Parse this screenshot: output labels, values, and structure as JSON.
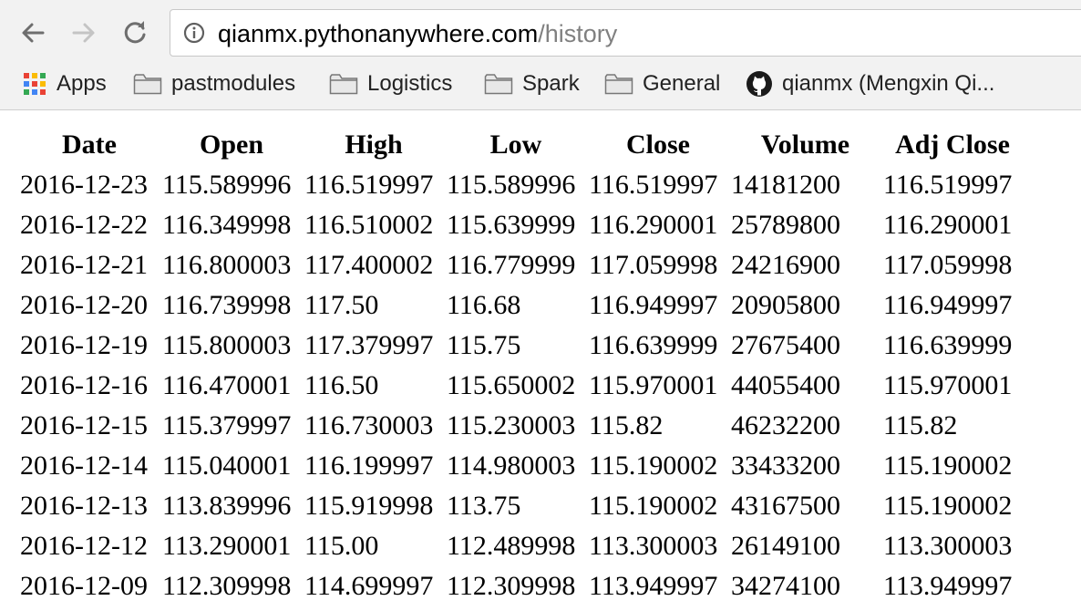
{
  "browser": {
    "url_host": "qianmx.pythonanywhere.com",
    "url_path": "/history",
    "icons": {
      "back": "arrow-left-icon",
      "forward": "arrow-right-icon",
      "reload": "reload-icon",
      "info": "info-icon"
    },
    "bookmarks": [
      {
        "label": "Apps",
        "icon": "apps-grid-icon"
      },
      {
        "label": "pastmodules",
        "icon": "folder-icon"
      },
      {
        "label": "Logistics",
        "icon": "folder-icon"
      },
      {
        "label": "Spark",
        "icon": "folder-icon"
      },
      {
        "label": "General",
        "icon": "folder-icon"
      },
      {
        "label": "qianmx (Mengxin Qi...",
        "icon": "github-icon"
      }
    ]
  },
  "table": {
    "headers": [
      "Date",
      "Open",
      "High",
      "Low",
      "Close",
      "Volume",
      "Adj Close"
    ],
    "rows": [
      [
        "2016-12-23",
        "115.589996",
        "116.519997",
        "115.589996",
        "116.519997",
        "14181200",
        "116.519997"
      ],
      [
        "2016-12-22",
        "116.349998",
        "116.510002",
        "115.639999",
        "116.290001",
        "25789800",
        "116.290001"
      ],
      [
        "2016-12-21",
        "116.800003",
        "117.400002",
        "116.779999",
        "117.059998",
        "24216900",
        "117.059998"
      ],
      [
        "2016-12-20",
        "116.739998",
        "117.50",
        "116.68",
        "116.949997",
        "20905800",
        "116.949997"
      ],
      [
        "2016-12-19",
        "115.800003",
        "117.379997",
        "115.75",
        "116.639999",
        "27675400",
        "116.639999"
      ],
      [
        "2016-12-16",
        "116.470001",
        "116.50",
        "115.650002",
        "115.970001",
        "44055400",
        "115.970001"
      ],
      [
        "2016-12-15",
        "115.379997",
        "116.730003",
        "115.230003",
        "115.82",
        "46232200",
        "115.82"
      ],
      [
        "2016-12-14",
        "115.040001",
        "116.199997",
        "114.980003",
        "115.190002",
        "33433200",
        "115.190002"
      ],
      [
        "2016-12-13",
        "113.839996",
        "115.919998",
        "113.75",
        "115.190002",
        "43167500",
        "115.190002"
      ],
      [
        "2016-12-12",
        "113.290001",
        "115.00",
        "112.489998",
        "113.300003",
        "26149100",
        "113.300003"
      ],
      [
        "2016-12-09",
        "112.309998",
        "114.699997",
        "112.309998",
        "113.949997",
        "34274100",
        "113.949997"
      ]
    ]
  }
}
